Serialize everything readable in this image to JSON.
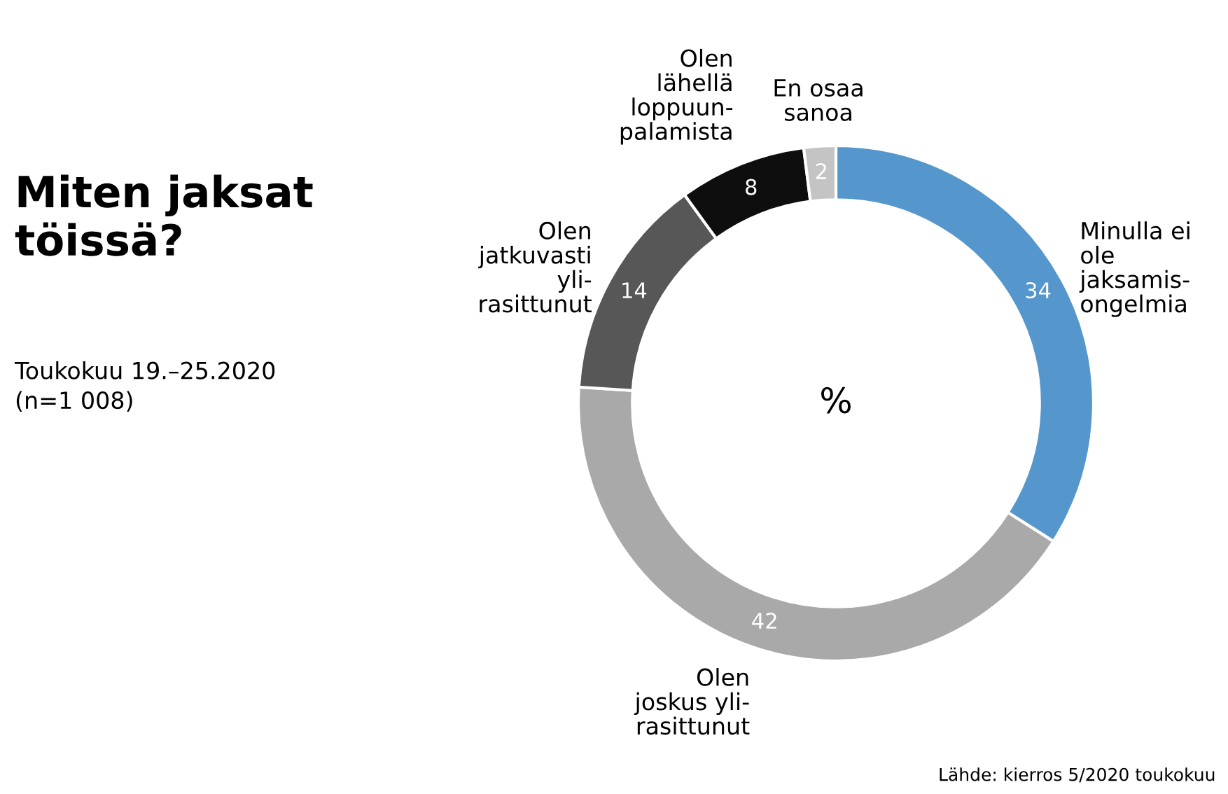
{
  "chart_data": {
    "type": "donut",
    "title": "Miten jaksat\ntöissä?",
    "subtitle": "Toukokuu 19.–25.2020\n(n=1 008)",
    "categories": [
      "Minulla ei\nole\njaksamis-\nongelmia",
      "Olen\njoskus yli-\nrasittunut",
      "Olen\njatkuvasti\nyli-\nrasittunut",
      "Olen\nlähellä\nloppuun-\npalamista",
      "En osaa\nsanoa"
    ],
    "values": [
      34,
      42,
      14,
      8,
      2
    ],
    "colors": [
      "#5597cc",
      "#a9a9a9",
      "#575757",
      "#0e0e0e",
      "#c4c4c4"
    ],
    "data_labels": true,
    "annotations": [
      "%",
      "Lähde: kierros 5/2020 toukokuu"
    ],
    "legend": false
  }
}
